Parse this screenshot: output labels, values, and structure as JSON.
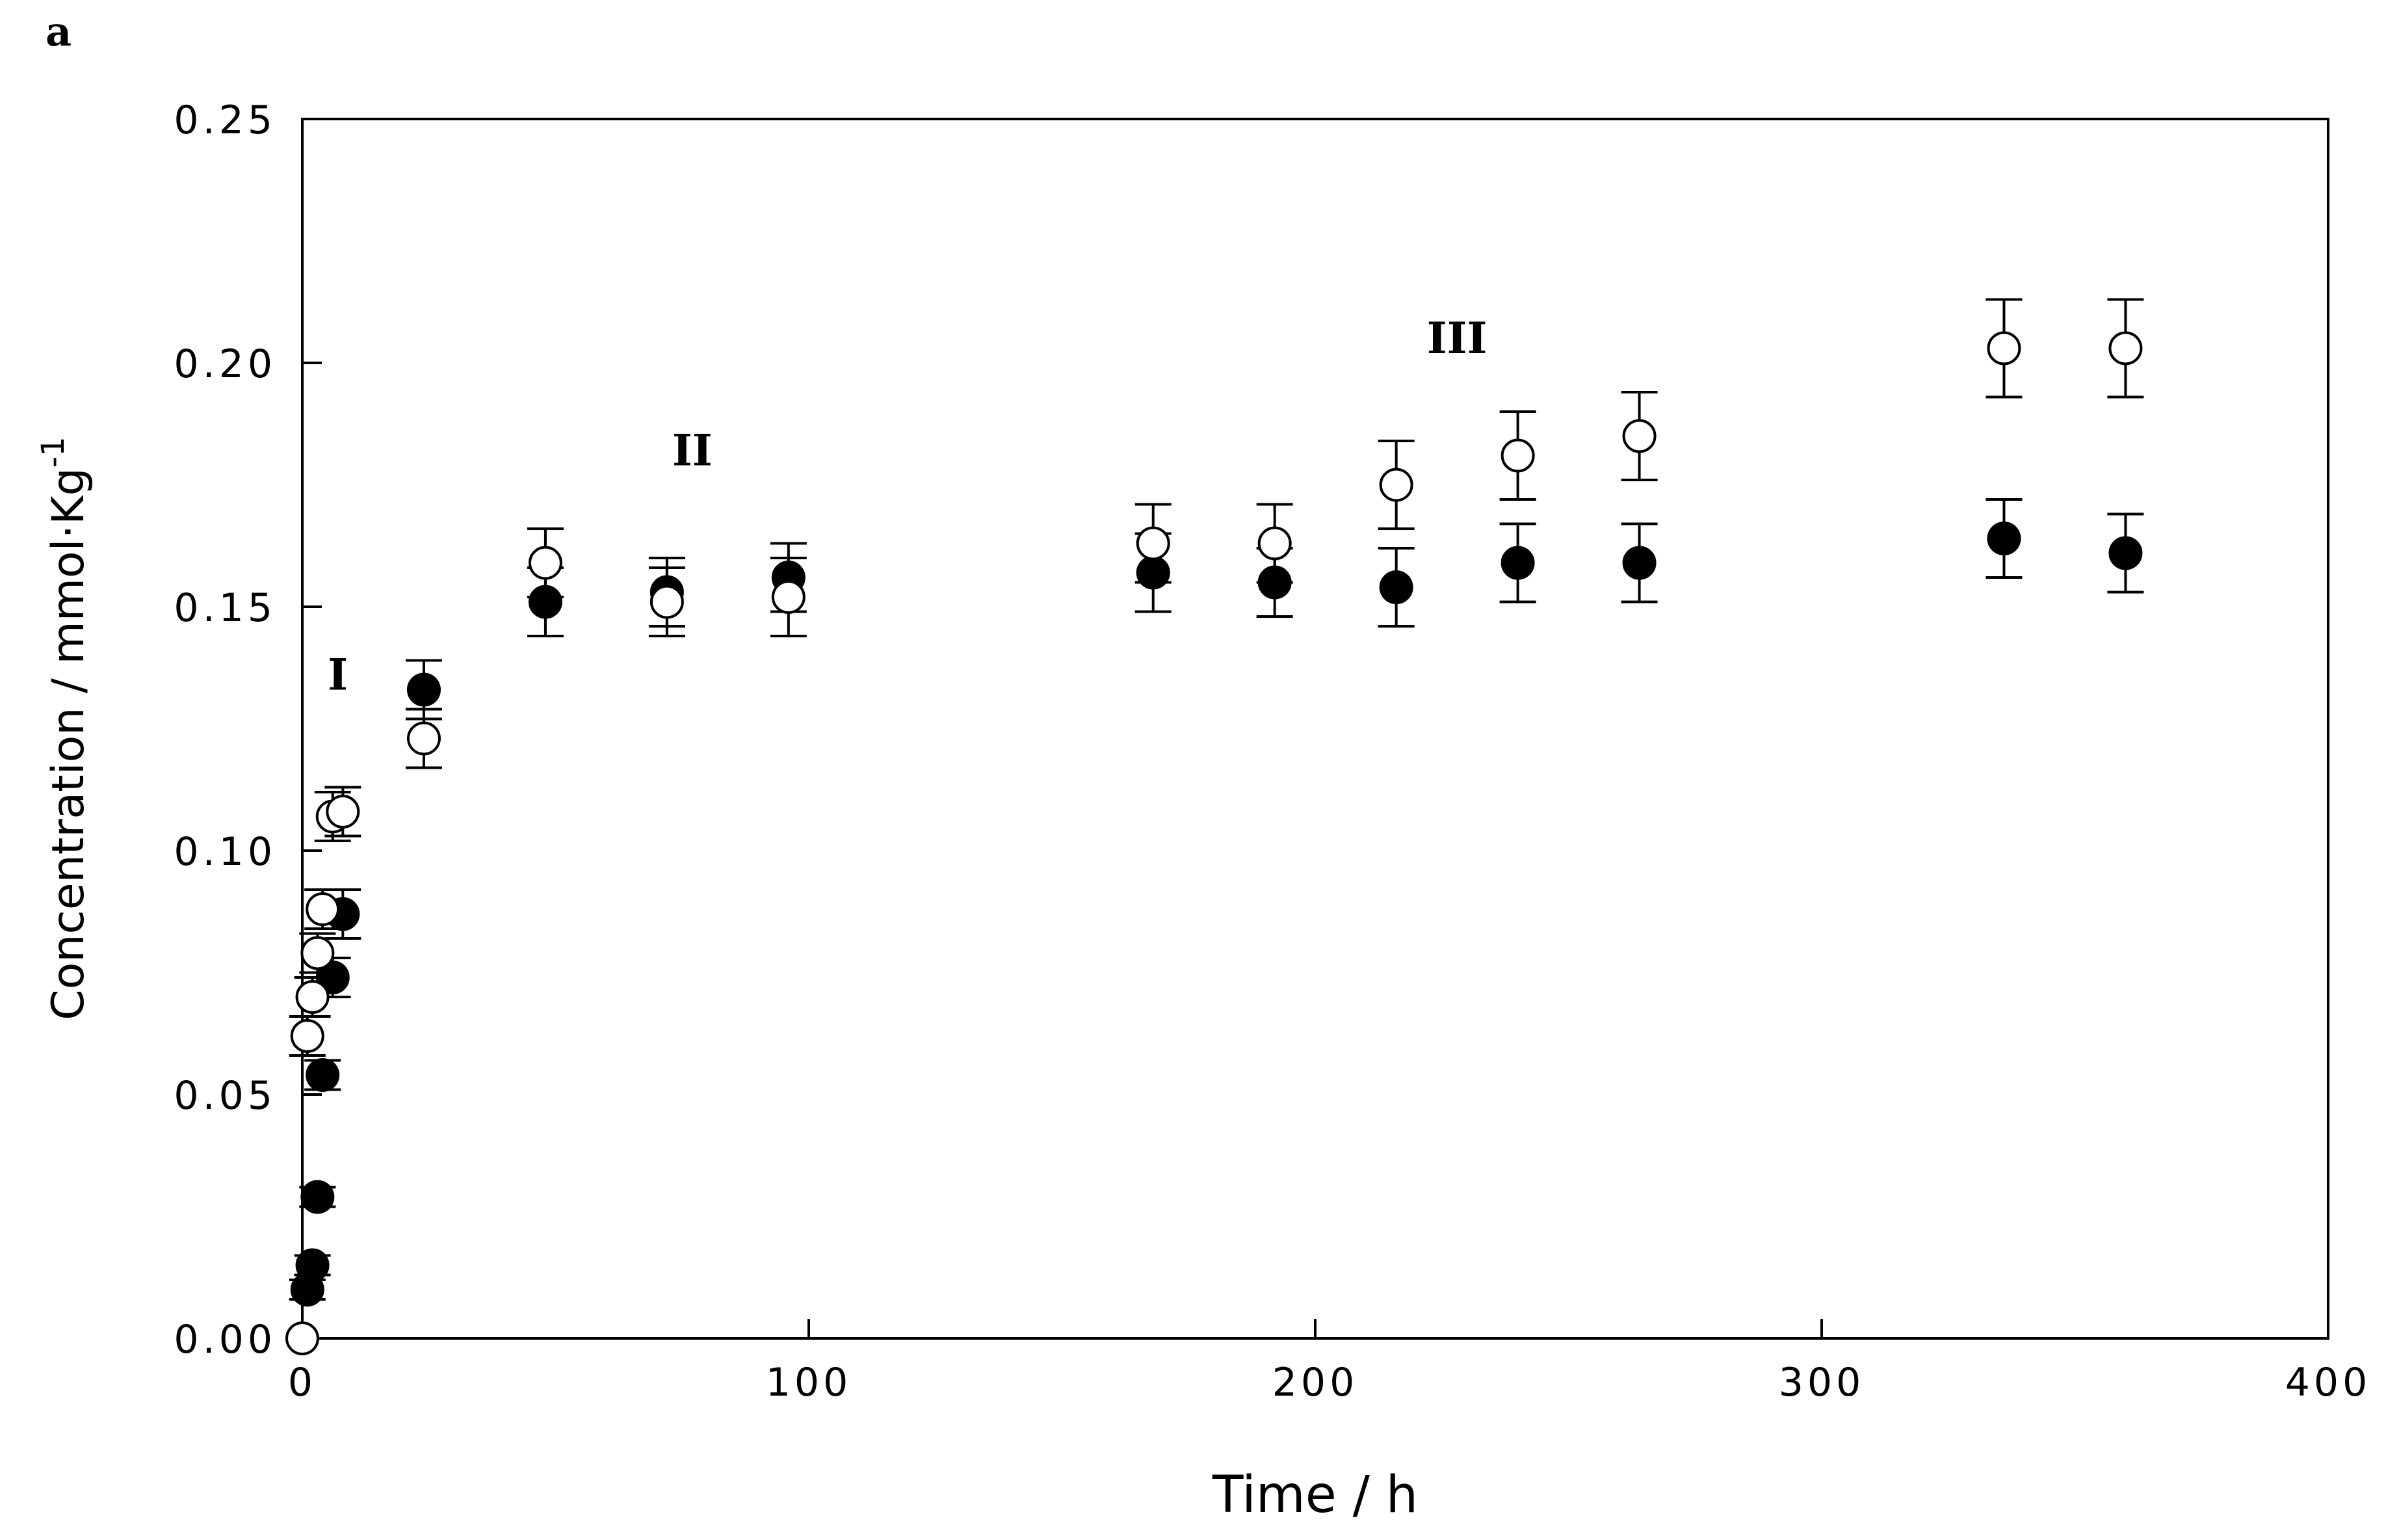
{
  "figure": {
    "panel_label": "a"
  },
  "chart_data": {
    "type": "scatter",
    "xlabel": "Time / h",
    "ylabel": "Concentration / mmol·Kg",
    "ylabel_superscript": "-1",
    "xlim": [
      0,
      400
    ],
    "ylim": [
      0,
      0.25
    ],
    "x_ticks": [
      0,
      100,
      200,
      300,
      400
    ],
    "x_tick_labels": [
      "0",
      "100",
      "200",
      "300",
      "400"
    ],
    "y_ticks": [
      0,
      0.05,
      0.1,
      0.15,
      0.2,
      0.25
    ],
    "y_tick_labels": [
      "0.00",
      "0.05",
      "0.10",
      "0.15",
      "0.20",
      "0.25"
    ],
    "grid": false,
    "legend": false,
    "annotations": [
      {
        "text": "I",
        "x": 7,
        "y": 0.133
      },
      {
        "text": "II",
        "x": 77,
        "y": 0.179
      },
      {
        "text": "III",
        "x": 228,
        "y": 0.202
      }
    ],
    "series": [
      {
        "marker": "filled-circle",
        "color": "#000000",
        "points": [
          {
            "x": 1,
            "y": 0.01,
            "err": 0.002
          },
          {
            "x": 2,
            "y": 0.015,
            "err": 0.002
          },
          {
            "x": 3,
            "y": 0.029,
            "err": 0.002
          },
          {
            "x": 4,
            "y": 0.054,
            "err": 0.003
          },
          {
            "x": 6,
            "y": 0.074,
            "err": 0.004
          },
          {
            "x": 8,
            "y": 0.087,
            "err": 0.005
          },
          {
            "x": 24,
            "y": 0.133,
            "err": 0.006
          },
          {
            "x": 48,
            "y": 0.151,
            "err": 0.007
          },
          {
            "x": 72,
            "y": 0.153,
            "err": 0.007
          },
          {
            "x": 96,
            "y": 0.156,
            "err": 0.007
          },
          {
            "x": 168,
            "y": 0.157,
            "err": 0.008
          },
          {
            "x": 192,
            "y": 0.155,
            "err": 0.007
          },
          {
            "x": 216,
            "y": 0.154,
            "err": 0.008
          },
          {
            "x": 240,
            "y": 0.159,
            "err": 0.008
          },
          {
            "x": 264,
            "y": 0.159,
            "err": 0.008
          },
          {
            "x": 336,
            "y": 0.164,
            "err": 0.008
          },
          {
            "x": 360,
            "y": 0.161,
            "err": 0.008
          }
        ]
      },
      {
        "marker": "open-circle",
        "color": "#000000",
        "points": [
          {
            "x": 0,
            "y": 0.0,
            "err": 0
          },
          {
            "x": 1,
            "y": 0.062,
            "err": 0.004
          },
          {
            "x": 2,
            "y": 0.07,
            "err": 0.004
          },
          {
            "x": 3,
            "y": 0.079,
            "err": 0.004
          },
          {
            "x": 4,
            "y": 0.088,
            "err": 0.004
          },
          {
            "x": 6,
            "y": 0.107,
            "err": 0.005
          },
          {
            "x": 8,
            "y": 0.108,
            "err": 0.005
          },
          {
            "x": 24,
            "y": 0.123,
            "err": 0.006
          },
          {
            "x": 48,
            "y": 0.159,
            "err": 0.007
          },
          {
            "x": 72,
            "y": 0.151,
            "err": 0.007
          },
          {
            "x": 96,
            "y": 0.152,
            "err": 0.008
          },
          {
            "x": 168,
            "y": 0.163,
            "err": 0.008
          },
          {
            "x": 192,
            "y": 0.163,
            "err": 0.008
          },
          {
            "x": 216,
            "y": 0.175,
            "err": 0.009
          },
          {
            "x": 240,
            "y": 0.181,
            "err": 0.009
          },
          {
            "x": 264,
            "y": 0.185,
            "err": 0.009
          },
          {
            "x": 336,
            "y": 0.203,
            "err": 0.01
          },
          {
            "x": 360,
            "y": 0.203,
            "err": 0.01
          }
        ]
      }
    ]
  }
}
